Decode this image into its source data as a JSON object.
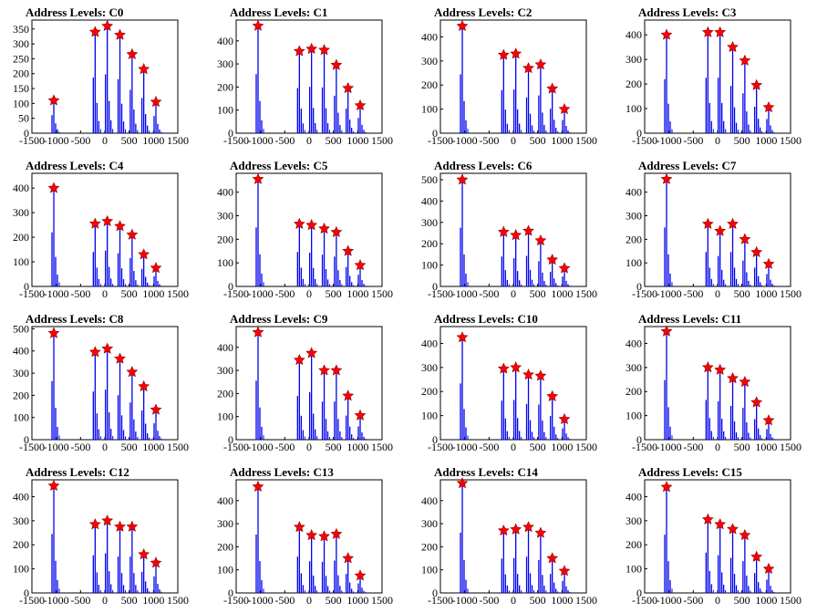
{
  "style": {
    "bar_color": "#0000ee",
    "marker_color": "#ff0000",
    "axis_color": "#000000"
  },
  "chart_data": [
    {
      "type": "bar",
      "title": "Address Levels: C0",
      "xlim": [
        -1500,
        1500
      ],
      "ylim": [
        0,
        380
      ],
      "xticks": [
        -1500,
        -1000,
        -500,
        0,
        500,
        1000,
        1500
      ],
      "yticks": [
        0,
        50,
        100,
        150,
        200,
        250,
        300,
        350
      ],
      "peaks": [
        {
          "x": -1050,
          "y": 110
        },
        {
          "x": -200,
          "y": 340
        },
        {
          "x": 50,
          "y": 360
        },
        {
          "x": 310,
          "y": 330
        },
        {
          "x": 560,
          "y": 265
        },
        {
          "x": 800,
          "y": 215
        },
        {
          "x": 1050,
          "y": 105
        }
      ]
    },
    {
      "type": "bar",
      "title": "Address Levels: C1",
      "xlim": [
        -1500,
        1500
      ],
      "ylim": [
        0,
        490
      ],
      "xticks": [
        -1500,
        -1000,
        -500,
        0,
        500,
        1000,
        1500
      ],
      "yticks": [
        0,
        100,
        200,
        300,
        400
      ],
      "peaks": [
        {
          "x": -1050,
          "y": 465
        },
        {
          "x": -200,
          "y": 355
        },
        {
          "x": 50,
          "y": 365
        },
        {
          "x": 310,
          "y": 360
        },
        {
          "x": 560,
          "y": 295
        },
        {
          "x": 800,
          "y": 195
        },
        {
          "x": 1050,
          "y": 120
        }
      ]
    },
    {
      "type": "bar",
      "title": "Address Levels: C2",
      "xlim": [
        -1500,
        1500
      ],
      "ylim": [
        0,
        470
      ],
      "xticks": [
        -1500,
        -1000,
        -500,
        0,
        500,
        1000,
        1500
      ],
      "yticks": [
        0,
        100,
        200,
        300,
        400
      ],
      "peaks": [
        {
          "x": -1050,
          "y": 445
        },
        {
          "x": -200,
          "y": 325
        },
        {
          "x": 50,
          "y": 330
        },
        {
          "x": 310,
          "y": 270
        },
        {
          "x": 560,
          "y": 285
        },
        {
          "x": 800,
          "y": 185
        },
        {
          "x": 1050,
          "y": 100
        }
      ]
    },
    {
      "type": "bar",
      "title": "Address Levels: C3",
      "xlim": [
        -1500,
        1500
      ],
      "ylim": [
        0,
        460
      ],
      "xticks": [
        -1500,
        -1000,
        -500,
        0,
        500,
        1000,
        1500
      ],
      "yticks": [
        0,
        100,
        200,
        300,
        400
      ],
      "peaks": [
        {
          "x": -1050,
          "y": 400
        },
        {
          "x": -200,
          "y": 410
        },
        {
          "x": 50,
          "y": 410
        },
        {
          "x": 310,
          "y": 350
        },
        {
          "x": 560,
          "y": 295
        },
        {
          "x": 800,
          "y": 195
        },
        {
          "x": 1050,
          "y": 105
        }
      ]
    },
    {
      "type": "bar",
      "title": "Address Levels: C4",
      "xlim": [
        -1500,
        1500
      ],
      "ylim": [
        0,
        460
      ],
      "xticks": [
        -1500,
        -1000,
        -500,
        0,
        500,
        1000,
        1500
      ],
      "yticks": [
        0,
        100,
        200,
        300,
        400
      ],
      "peaks": [
        {
          "x": -1050,
          "y": 400
        },
        {
          "x": -200,
          "y": 255
        },
        {
          "x": 50,
          "y": 265
        },
        {
          "x": 310,
          "y": 245
        },
        {
          "x": 560,
          "y": 210
        },
        {
          "x": 800,
          "y": 130
        },
        {
          "x": 1050,
          "y": 75
        }
      ]
    },
    {
      "type": "bar",
      "title": "Address Levels: C5",
      "xlim": [
        -1500,
        1500
      ],
      "ylim": [
        0,
        480
      ],
      "xticks": [
        -1500,
        -1000,
        -500,
        0,
        500,
        1000,
        1500
      ],
      "yticks": [
        0,
        100,
        200,
        300,
        400
      ],
      "peaks": [
        {
          "x": -1050,
          "y": 455
        },
        {
          "x": -200,
          "y": 265
        },
        {
          "x": 50,
          "y": 260
        },
        {
          "x": 310,
          "y": 245
        },
        {
          "x": 560,
          "y": 230
        },
        {
          "x": 800,
          "y": 150
        },
        {
          "x": 1050,
          "y": 90
        }
      ]
    },
    {
      "type": "bar",
      "title": "Address Levels: C6",
      "xlim": [
        -1500,
        1500
      ],
      "ylim": [
        0,
        530
      ],
      "xticks": [
        -1500,
        -1000,
        -500,
        0,
        500,
        1000,
        1500
      ],
      "yticks": [
        0,
        100,
        200,
        300,
        400,
        500
      ],
      "peaks": [
        {
          "x": -1050,
          "y": 500
        },
        {
          "x": -200,
          "y": 255
        },
        {
          "x": 50,
          "y": 240
        },
        {
          "x": 310,
          "y": 260
        },
        {
          "x": 560,
          "y": 215
        },
        {
          "x": 800,
          "y": 125
        },
        {
          "x": 1050,
          "y": 85
        }
      ]
    },
    {
      "type": "bar",
      "title": "Address Levels: C7",
      "xlim": [
        -1500,
        1500
      ],
      "ylim": [
        0,
        480
      ],
      "xticks": [
        -1500,
        -1000,
        -500,
        0,
        500,
        1000,
        1500
      ],
      "yticks": [
        0,
        100,
        200,
        300,
        400
      ],
      "peaks": [
        {
          "x": -1050,
          "y": 455
        },
        {
          "x": -200,
          "y": 265
        },
        {
          "x": 50,
          "y": 235
        },
        {
          "x": 310,
          "y": 265
        },
        {
          "x": 560,
          "y": 200
        },
        {
          "x": 800,
          "y": 145
        },
        {
          "x": 1050,
          "y": 95
        }
      ]
    },
    {
      "type": "bar",
      "title": "Address Levels: C8",
      "xlim": [
        -1500,
        1500
      ],
      "ylim": [
        0,
        510
      ],
      "xticks": [
        -1500,
        -1000,
        -500,
        0,
        500,
        1000,
        1500
      ],
      "yticks": [
        0,
        100,
        200,
        300,
        400,
        500
      ],
      "peaks": [
        {
          "x": -1050,
          "y": 480
        },
        {
          "x": -200,
          "y": 395
        },
        {
          "x": 50,
          "y": 410
        },
        {
          "x": 310,
          "y": 365
        },
        {
          "x": 560,
          "y": 305
        },
        {
          "x": 800,
          "y": 240
        },
        {
          "x": 1050,
          "y": 135
        }
      ]
    },
    {
      "type": "bar",
      "title": "Address Levels: C9",
      "xlim": [
        -1500,
        1500
      ],
      "ylim": [
        0,
        490
      ],
      "xticks": [
        -1500,
        -1000,
        -500,
        0,
        500,
        1000,
        1500
      ],
      "yticks": [
        0,
        100,
        200,
        300,
        400
      ],
      "peaks": [
        {
          "x": -1050,
          "y": 465
        },
        {
          "x": -200,
          "y": 345
        },
        {
          "x": 50,
          "y": 375
        },
        {
          "x": 310,
          "y": 300
        },
        {
          "x": 560,
          "y": 300
        },
        {
          "x": 800,
          "y": 190
        },
        {
          "x": 1050,
          "y": 105
        }
      ]
    },
    {
      "type": "bar",
      "title": "Address Levels: C10",
      "xlim": [
        -1500,
        1500
      ],
      "ylim": [
        0,
        470
      ],
      "xticks": [
        -1500,
        -1000,
        -500,
        0,
        500,
        1000,
        1500
      ],
      "yticks": [
        0,
        100,
        200,
        300,
        400
      ],
      "peaks": [
        {
          "x": -1050,
          "y": 425
        },
        {
          "x": -200,
          "y": 295
        },
        {
          "x": 50,
          "y": 300
        },
        {
          "x": 310,
          "y": 270
        },
        {
          "x": 560,
          "y": 265
        },
        {
          "x": 800,
          "y": 180
        },
        {
          "x": 1050,
          "y": 85
        }
      ]
    },
    {
      "type": "bar",
      "title": "Address Levels: C11",
      "xlim": [
        -1500,
        1500
      ],
      "ylim": [
        0,
        470
      ],
      "xticks": [
        -1500,
        -1000,
        -500,
        0,
        500,
        1000,
        1500
      ],
      "yticks": [
        0,
        100,
        200,
        300,
        400
      ],
      "peaks": [
        {
          "x": -1050,
          "y": 450
        },
        {
          "x": -200,
          "y": 300
        },
        {
          "x": 50,
          "y": 290
        },
        {
          "x": 310,
          "y": 255
        },
        {
          "x": 560,
          "y": 240
        },
        {
          "x": 800,
          "y": 155
        },
        {
          "x": 1050,
          "y": 80
        }
      ]
    },
    {
      "type": "bar",
      "title": "Address Levels: C12",
      "xlim": [
        -1500,
        1500
      ],
      "ylim": [
        0,
        470
      ],
      "xticks": [
        -1500,
        -1000,
        -500,
        0,
        500,
        1000,
        1500
      ],
      "yticks": [
        0,
        100,
        200,
        300,
        400
      ],
      "peaks": [
        {
          "x": -1050,
          "y": 445
        },
        {
          "x": -200,
          "y": 285
        },
        {
          "x": 50,
          "y": 300
        },
        {
          "x": 310,
          "y": 275
        },
        {
          "x": 560,
          "y": 275
        },
        {
          "x": 800,
          "y": 160
        },
        {
          "x": 1050,
          "y": 125
        }
      ]
    },
    {
      "type": "bar",
      "title": "Address Levels: C13",
      "xlim": [
        -1500,
        1500
      ],
      "ylim": [
        0,
        490
      ],
      "xticks": [
        -1500,
        -1000,
        -500,
        0,
        500,
        1000,
        1500
      ],
      "yticks": [
        0,
        100,
        200,
        300,
        400
      ],
      "peaks": [
        {
          "x": -1050,
          "y": 460
        },
        {
          "x": -200,
          "y": 285
        },
        {
          "x": 50,
          "y": 250
        },
        {
          "x": 310,
          "y": 245
        },
        {
          "x": 560,
          "y": 255
        },
        {
          "x": 800,
          "y": 150
        },
        {
          "x": 1050,
          "y": 75
        }
      ]
    },
    {
      "type": "bar",
      "title": "Address Levels: C14",
      "xlim": [
        -1500,
        1500
      ],
      "ylim": [
        0,
        490
      ],
      "xticks": [
        -1500,
        -1000,
        -500,
        0,
        500,
        1000,
        1500
      ],
      "yticks": [
        0,
        100,
        200,
        300,
        400
      ],
      "peaks": [
        {
          "x": -1050,
          "y": 475
        },
        {
          "x": -200,
          "y": 270
        },
        {
          "x": 50,
          "y": 275
        },
        {
          "x": 310,
          "y": 285
        },
        {
          "x": 560,
          "y": 260
        },
        {
          "x": 800,
          "y": 150
        },
        {
          "x": 1050,
          "y": 95
        }
      ]
    },
    {
      "type": "bar",
      "title": "Address Levels: C15",
      "xlim": [
        -1500,
        1500
      ],
      "ylim": [
        0,
        470
      ],
      "xticks": [
        -1500,
        -1000,
        -500,
        0,
        500,
        1000,
        1500
      ],
      "yticks": [
        0,
        100,
        200,
        300,
        400
      ],
      "peaks": [
        {
          "x": -1050,
          "y": 440
        },
        {
          "x": -200,
          "y": 305
        },
        {
          "x": 50,
          "y": 285
        },
        {
          "x": 310,
          "y": 265
        },
        {
          "x": 560,
          "y": 240
        },
        {
          "x": 800,
          "y": 150
        },
        {
          "x": 1050,
          "y": 100
        }
      ]
    }
  ]
}
